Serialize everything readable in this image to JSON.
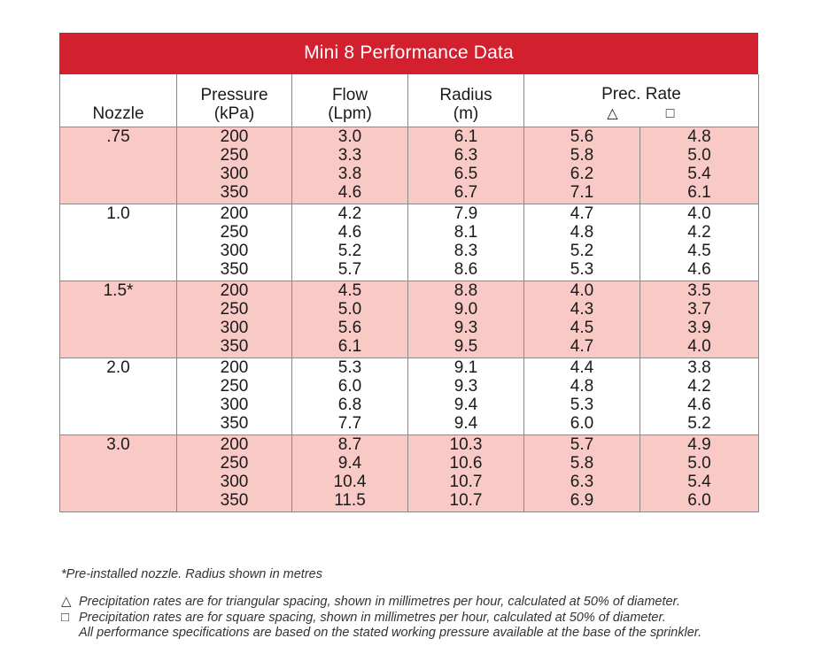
{
  "title": "Mini 8 Performance Data",
  "headers": {
    "nozzle": "Nozzle",
    "pressure": [
      "Pressure",
      "(kPa)"
    ],
    "flow": [
      "Flow",
      "(Lpm)"
    ],
    "radius": [
      "Radius",
      "(m)"
    ],
    "prec_rate": "Prec. Rate",
    "triangle_symbol": "△",
    "square_symbol": "□"
  },
  "rows": [
    {
      "nozzle": ".75",
      "pressure": [
        "200",
        "250",
        "300",
        "350"
      ],
      "flow": [
        "3.0",
        "3.3",
        "3.8",
        "4.6"
      ],
      "radius": [
        "6.1",
        "6.3",
        "6.5",
        "6.7"
      ],
      "prec_tri": [
        "5.6",
        "5.8",
        "6.2",
        "7.1"
      ],
      "prec_sq": [
        "4.8",
        "5.0",
        "5.4",
        "6.1"
      ]
    },
    {
      "nozzle": "1.0",
      "pressure": [
        "200",
        "250",
        "300",
        "350"
      ],
      "flow": [
        "4.2",
        "4.6",
        "5.2",
        "5.7"
      ],
      "radius": [
        "7.9",
        "8.1",
        "8.3",
        "8.6"
      ],
      "prec_tri": [
        "4.7",
        "4.8",
        "5.2",
        "5.3"
      ],
      "prec_sq": [
        "4.0",
        "4.2",
        "4.5",
        "4.6"
      ]
    },
    {
      "nozzle": "1.5*",
      "pressure": [
        "200",
        "250",
        "300",
        "350"
      ],
      "flow": [
        "4.5",
        "5.0",
        "5.6",
        "6.1"
      ],
      "radius": [
        "8.8",
        "9.0",
        "9.3",
        "9.5"
      ],
      "prec_tri": [
        "4.0",
        "4.3",
        "4.5",
        "4.7"
      ],
      "prec_sq": [
        "3.5",
        "3.7",
        "3.9",
        "4.0"
      ]
    },
    {
      "nozzle": "2.0",
      "pressure": [
        "200",
        "250",
        "300",
        "350"
      ],
      "flow": [
        "5.3",
        "6.0",
        "6.8",
        "7.7"
      ],
      "radius": [
        "9.1",
        "9.3",
        "9.4",
        "9.4"
      ],
      "prec_tri": [
        "4.4",
        "4.8",
        "5.3",
        "6.0"
      ],
      "prec_sq": [
        "3.8",
        "4.2",
        "4.6",
        "5.2"
      ]
    },
    {
      "nozzle": "3.0",
      "pressure": [
        "200",
        "250",
        "300",
        "350"
      ],
      "flow": [
        "8.7",
        "9.4",
        "10.4",
        "11.5"
      ],
      "radius": [
        "10.3",
        "10.6",
        "10.7",
        "10.7"
      ],
      "prec_tri": [
        "5.7",
        "5.8",
        "6.3",
        "6.9"
      ],
      "prec_sq": [
        "4.9",
        "5.0",
        "5.4",
        "6.0"
      ]
    }
  ],
  "notes": {
    "preinstalled": "*Pre-installed nozzle. Radius shown in metres",
    "triangle_note": "Precipitation rates are for triangular spacing, shown in millimetres per hour, calculated at 50% of diameter.",
    "square_note": "Precipitation rates are for square spacing, shown in millimetres per hour, calculated at 50% of diameter.",
    "spec_note": "All performance specifications are based on the stated working pressure available at the base of the sprinkler."
  },
  "colors": {
    "title_bg": "#d3202f",
    "shaded_row": "#f9c9c6"
  }
}
